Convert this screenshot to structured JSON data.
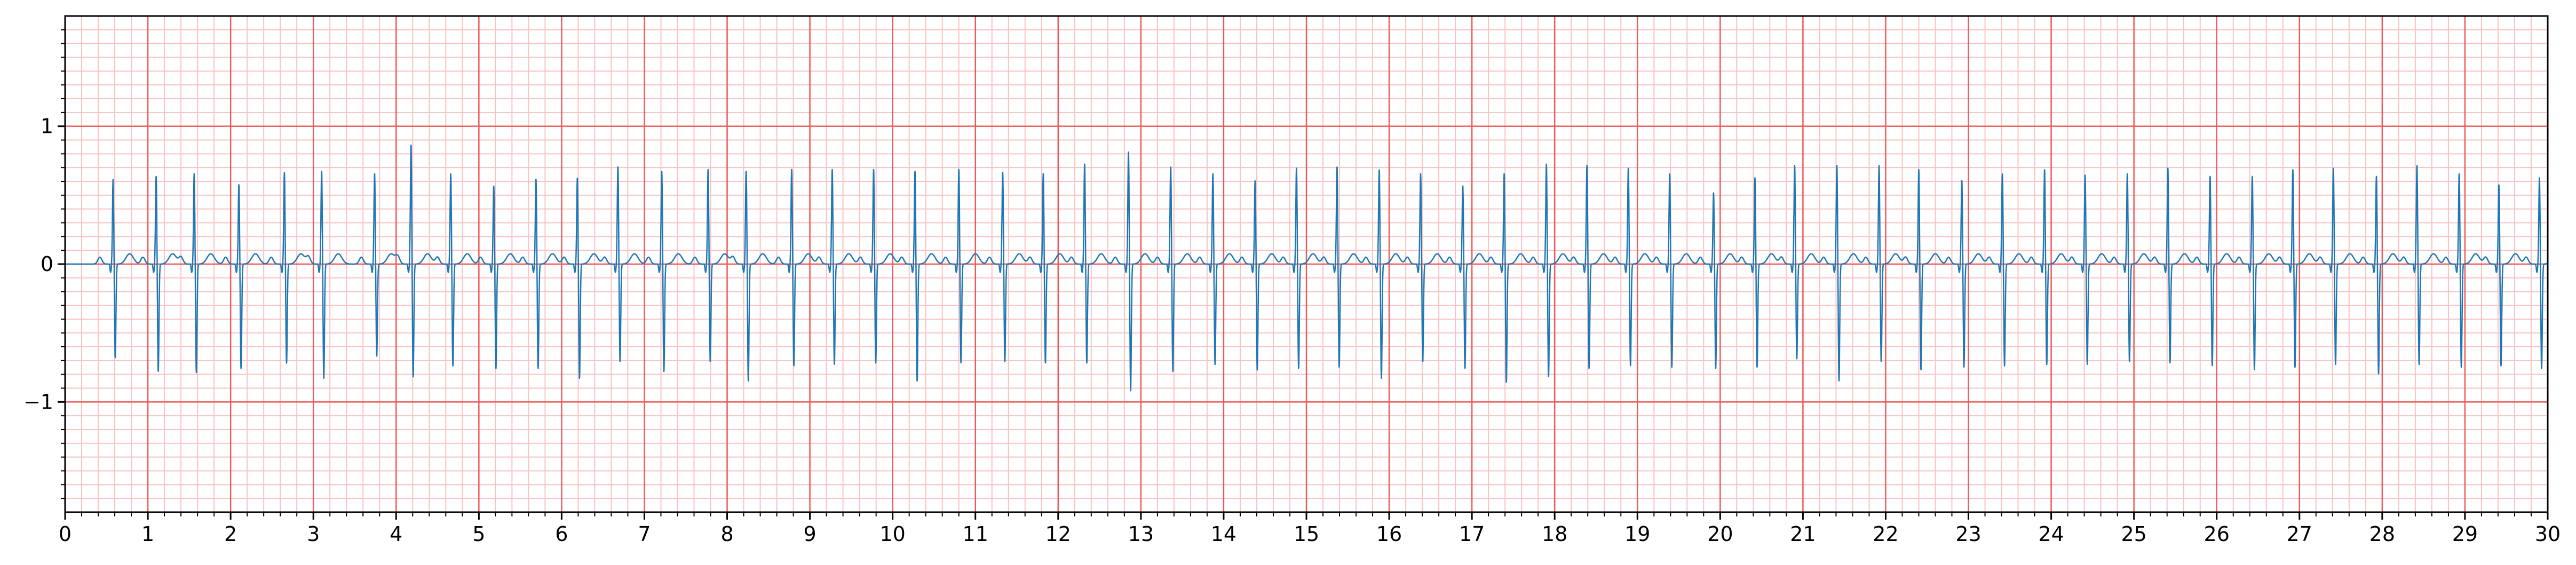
{
  "chart_data": {
    "type": "line",
    "title": "",
    "xlabel": "",
    "ylabel": "",
    "xlim": [
      0,
      30
    ],
    "ylim": [
      -1.8,
      1.8
    ],
    "x_ticks": [
      "0",
      "1",
      "2",
      "3",
      "4",
      "5",
      "6",
      "7",
      "8",
      "9",
      "10",
      "11",
      "12",
      "13",
      "14",
      "15",
      "16",
      "17",
      "18",
      "19",
      "20",
      "21",
      "22",
      "23",
      "24",
      "25",
      "26",
      "27",
      "28",
      "29",
      "30"
    ],
    "y_ticks": [
      "1",
      "0",
      "−1"
    ],
    "y_tick_values": [
      1,
      0,
      -1
    ],
    "grid": {
      "major_x": 1,
      "minor_x": 0.2,
      "major_y": 1,
      "minor_y": 0.1
    },
    "colors": {
      "trace": "#1f77b4",
      "major_grid": "#ee5a5a",
      "minor_grid": "#f9c2c2",
      "axis": "#000000"
    },
    "series": [
      {
        "beat_times": [
          0.58,
          1.1,
          1.56,
          2.1,
          2.65,
          3.1,
          3.74,
          4.18,
          4.66,
          5.18,
          5.69,
          6.19,
          6.68,
          7.21,
          7.77,
          8.23,
          8.78,
          9.27,
          9.77,
          10.27,
          10.8,
          11.33,
          11.82,
          12.32,
          12.85,
          13.36,
          13.87,
          14.38,
          14.88,
          15.37,
          15.88,
          16.38,
          16.89,
          17.39,
          17.9,
          18.39,
          18.89,
          19.39,
          19.92,
          20.42,
          20.9,
          21.41,
          21.92,
          22.4,
          22.92,
          23.41,
          23.92,
          24.41,
          24.92,
          25.41,
          25.92,
          26.43,
          26.92,
          27.41,
          27.93,
          28.42,
          28.93,
          29.41,
          29.9
        ],
        "r_peaks": [
          0.62,
          0.64,
          0.66,
          0.58,
          0.67,
          0.68,
          0.66,
          0.87,
          0.66,
          0.57,
          0.62,
          0.63,
          0.71,
          0.68,
          0.69,
          0.68,
          0.69,
          0.69,
          0.69,
          0.68,
          0.69,
          0.67,
          0.66,
          0.73,
          0.82,
          0.71,
          0.66,
          0.61,
          0.7,
          0.71,
          0.69,
          0.66,
          0.57,
          0.66,
          0.73,
          0.72,
          0.7,
          0.66,
          0.52,
          0.63,
          0.72,
          0.72,
          0.72,
          0.69,
          0.61,
          0.66,
          0.69,
          0.65,
          0.66,
          0.7,
          0.64,
          0.64,
          0.69,
          0.7,
          0.64,
          0.72,
          0.66,
          0.58,
          0.63
        ],
        "s_troughs": [
          -0.68,
          -0.78,
          -0.79,
          -0.76,
          -0.72,
          -0.83,
          -0.67,
          -0.82,
          -0.74,
          -0.76,
          -0.76,
          -0.83,
          -0.71,
          -0.78,
          -0.71,
          -0.85,
          -0.74,
          -0.73,
          -0.72,
          -0.85,
          -0.72,
          -0.71,
          -0.72,
          -0.72,
          -0.92,
          -0.78,
          -0.73,
          -0.77,
          -0.76,
          -0.75,
          -0.83,
          -0.71,
          -0.76,
          -0.86,
          -0.82,
          -0.76,
          -0.74,
          -0.75,
          -0.76,
          -0.75,
          -0.69,
          -0.85,
          -0.71,
          -0.77,
          -0.75,
          -0.74,
          -0.73,
          -0.73,
          -0.71,
          -0.72,
          -0.74,
          -0.77,
          -0.75,
          -0.73,
          -0.8,
          -0.73,
          -0.75,
          -0.74,
          -0.76
        ]
      }
    ]
  }
}
